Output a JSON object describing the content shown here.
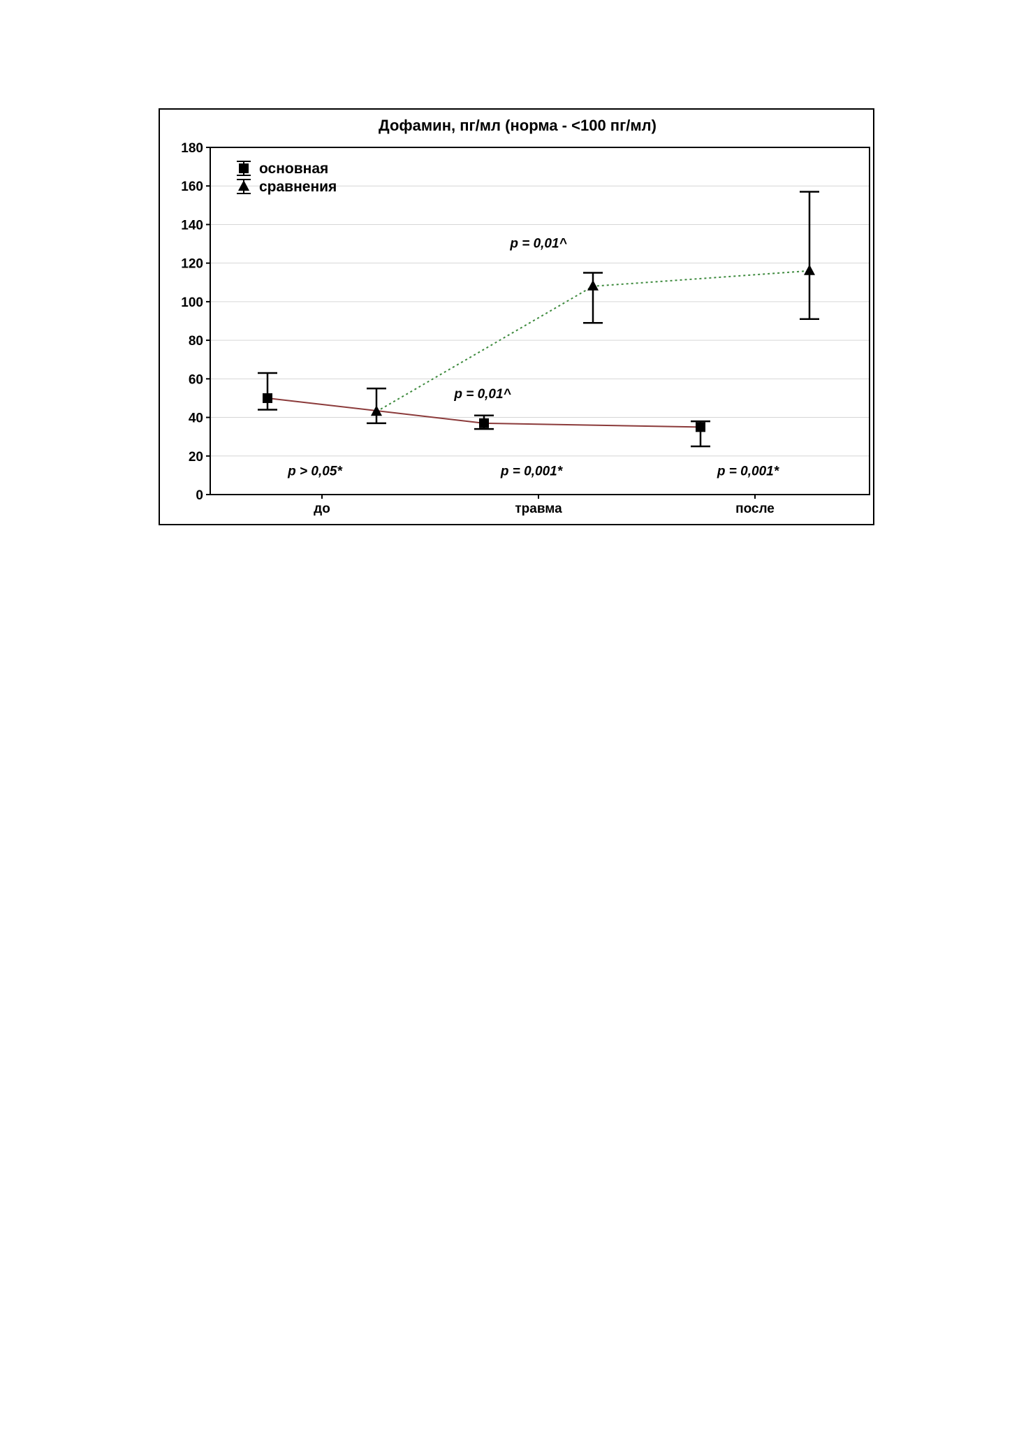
{
  "chart_data": {
    "type": "line",
    "title": "Дофамин, пг/мл (норма - <100 пг/мл)",
    "xlabel": "",
    "ylabel": "",
    "categories": [
      "до",
      "травма",
      "после"
    ],
    "ylim": [
      0,
      180
    ],
    "yticks": [
      0,
      20,
      40,
      60,
      80,
      100,
      120,
      140,
      160,
      180
    ],
    "grid": true,
    "legend_position": "top-left",
    "series": [
      {
        "name": "основная",
        "marker": "square",
        "line_style": "solid",
        "color": "#8b3a3a",
        "values": [
          50,
          37,
          35
        ],
        "error_low": [
          44,
          34,
          25
        ],
        "error_high": [
          63,
          41,
          38
        ]
      },
      {
        "name": "сравнения",
        "marker": "triangle",
        "line_style": "dotted",
        "color": "#3d8a3d",
        "values": [
          43,
          108,
          116
        ],
        "error_low": [
          37,
          89,
          91
        ],
        "error_high": [
          55,
          115,
          157
        ]
      }
    ],
    "annotations": [
      {
        "text": "p > 0,05*",
        "category": "до",
        "y": 10
      },
      {
        "text": "p = 0,01^",
        "category": "до",
        "y": 50
      },
      {
        "text": "p = 0,01^",
        "category": "травма",
        "y": 128
      },
      {
        "text": "p = 0,001*",
        "category": "травма",
        "y": 10
      },
      {
        "text": "p = 0,001*",
        "category": "после",
        "y": 10
      }
    ]
  }
}
